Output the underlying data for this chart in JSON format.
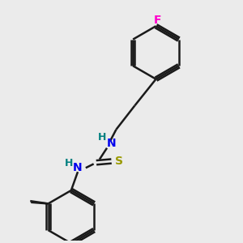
{
  "background_color": "#ebebeb",
  "bond_color": "#1a1a1a",
  "line_width": 1.8,
  "atom_colors": {
    "N": "#0000ee",
    "H": "#008080",
    "S": "#999900",
    "F": "#ff00cc",
    "C": "#1a1a1a"
  },
  "font_size": 10,
  "figsize": [
    3.0,
    3.0
  ],
  "dpi": 100
}
